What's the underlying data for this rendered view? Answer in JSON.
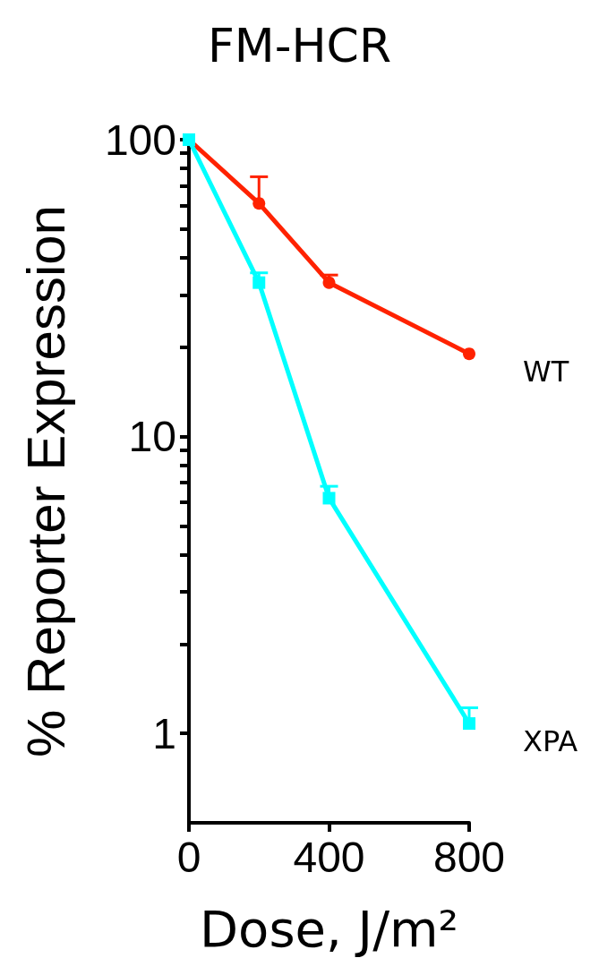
{
  "chart_data": {
    "type": "line",
    "title": "FM-HCR",
    "xlabel": "Dose, J/m²",
    "ylabel": "% Reporter Expression",
    "x": [
      0,
      200,
      400,
      800
    ],
    "xlim": [
      0,
      800
    ],
    "xticks": [
      0,
      400,
      800
    ],
    "log": "y",
    "ylim": [
      0.5,
      100
    ],
    "yticks": [
      1,
      {
        "value": 2,
        "label": null
      },
      {
        "value": 3,
        "label": null
      },
      {
        "value": 4,
        "label": null
      },
      {
        "value": 5,
        "label": null
      },
      {
        "value": 6,
        "label": null
      },
      {
        "value": 7,
        "label": null
      },
      {
        "value": 8,
        "label": null
      },
      {
        "value": 9,
        "label": null
      },
      10,
      {
        "value": 20,
        "label": null
      },
      {
        "value": 30,
        "label": null
      },
      {
        "value": 40,
        "label": null
      },
      {
        "value": 50,
        "label": null
      },
      {
        "value": 60,
        "label": null
      },
      {
        "value": 70,
        "label": null
      },
      {
        "value": 80,
        "label": null
      },
      {
        "value": 90,
        "label": null
      },
      100
    ],
    "grid": false,
    "legend": false,
    "line_style": "solid",
    "series": [
      {
        "name": "WT",
        "color": "#ff2200",
        "marker": "circle",
        "values": [
          100,
          61,
          33,
          19
        ],
        "errors": [
          null,
          [
            61,
            75
          ],
          [
            33,
            35
          ],
          null
        ]
      },
      {
        "name": "XPA",
        "color": "#00ffff",
        "marker": "square",
        "values": [
          100,
          33,
          6.2,
          1.08
        ],
        "errors": [
          null,
          [
            33,
            35.6
          ],
          [
            6.2,
            6.8
          ],
          [
            1.08,
            1.22
          ]
        ]
      }
    ]
  }
}
